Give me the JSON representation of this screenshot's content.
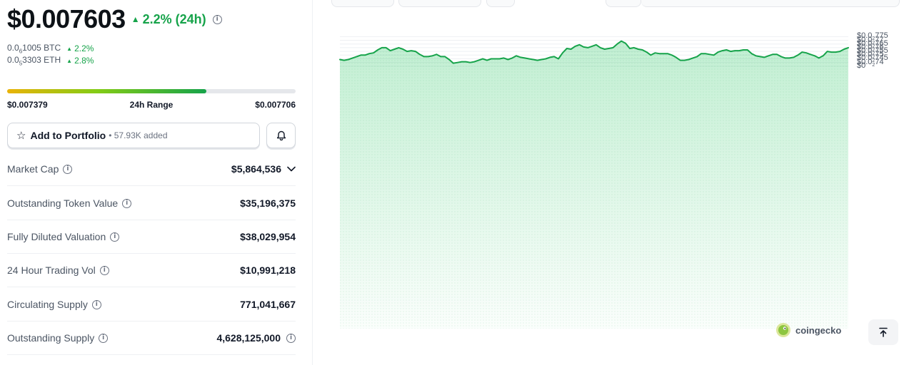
{
  "price": {
    "value": "$0.007603",
    "change": "2.2% (24h)"
  },
  "conversions": [
    {
      "prefix": "0.0",
      "sub": "6",
      "rest": "1005 BTC",
      "pct": "2.2%"
    },
    {
      "prefix": "0.0",
      "sub": "5",
      "rest": "3303 ETH",
      "pct": "2.8%"
    }
  ],
  "range": {
    "low": "$0.007379",
    "label": "24h Range",
    "high": "$0.007706",
    "fill_percent": 69
  },
  "portfolio": {
    "label": "Add to Portfolio",
    "added": "• 57.93K added"
  },
  "stats": [
    {
      "label": "Market Cap",
      "value": "$5,864,536"
    },
    {
      "label": "Outstanding Token Value",
      "value": "$35,196,375"
    },
    {
      "label": "Fully Diluted Valuation",
      "value": "$38,029,954"
    },
    {
      "label": "24 Hour Trading Vol",
      "value": "$10,991,218"
    },
    {
      "label": "Circulating Supply",
      "value": "771,041,667"
    },
    {
      "label": "Outstanding Supply",
      "value": "4,628,125,000"
    }
  ],
  "colors": {
    "up": "#16a34a",
    "line": "#16a34a",
    "area": "#dcfce7"
  },
  "icons": {
    "favorite": "star-icon",
    "alert": "bell-icon",
    "expand": "chevron-down-icon",
    "info": "info-icon",
    "scroll": "arrow-up-to-line-icon",
    "brand": "gecko-icon"
  },
  "watermark": "coingecko",
  "chart_data": {
    "type": "area",
    "ylim": [
      0.00738,
      0.007785
    ],
    "y_ticks": [
      {
        "value": 0.007775,
        "prefix": "$0.0",
        "sub": "2",
        "rest": "775"
      },
      {
        "value": 0.00777,
        "prefix": "$0.0",
        "sub": "2",
        "rest": "77"
      },
      {
        "value": 0.007765,
        "prefix": "$0.0",
        "sub": "2",
        "rest": "765"
      },
      {
        "value": 0.00776,
        "prefix": "$0.0",
        "sub": "2",
        "rest": "76"
      },
      {
        "value": 0.007755,
        "prefix": "$0.0",
        "sub": "2",
        "rest": "755"
      },
      {
        "value": 0.00775,
        "prefix": "$0.0",
        "sub": "2",
        "rest": "75"
      },
      {
        "value": 0.007745,
        "prefix": "$0.0",
        "sub": "2",
        "rest": "745"
      },
      {
        "value": 0.00774,
        "prefix": "$0.0",
        "sub": "2",
        "rest": "74"
      },
      {
        "value": 0.007735,
        "prefix": "$0",
        "sub": "",
        "rest": ""
      }
    ],
    "values": [
      0.007744,
      0.007743,
      0.007744,
      0.007746,
      0.007748,
      0.00775,
      0.00775,
      0.007752,
      0.007753,
      0.007757,
      0.00776,
      0.00776,
      0.007756,
      0.007758,
      0.00776,
      0.007758,
      0.007755,
      0.007756,
      0.007755,
      0.007751,
      0.007748,
      0.007748,
      0.007749,
      0.007751,
      0.007748,
      0.007748,
      0.007744,
      0.007739,
      0.00774,
      0.007741,
      0.007741,
      0.00774,
      0.007741,
      0.007743,
      0.007745,
      0.007743,
      0.007745,
      0.007745,
      0.007745,
      0.007746,
      0.007744,
      0.007746,
      0.007749,
      0.007747,
      0.007746,
      0.007745,
      0.007744,
      0.007743,
      0.007744,
      0.007745,
      0.007747,
      0.007748,
      0.007745,
      0.007753,
      0.007759,
      0.007758,
      0.007762,
      0.007764,
      0.007761,
      0.00776,
      0.007762,
      0.007764,
      0.00776,
      0.007758,
      0.007759,
      0.00776,
      0.007765,
      0.007769,
      0.007766,
      0.007759,
      0.00776,
      0.007758,
      0.007757,
      0.007754,
      0.00775,
      0.007753,
      0.007752,
      0.007752,
      0.007752,
      0.00775,
      0.007747,
      0.007743,
      0.007743,
      0.007744,
      0.007746,
      0.007748,
      0.007752,
      0.007752,
      0.007751,
      0.00775,
      0.007754,
      0.007756,
      0.007757,
      0.007755,
      0.007756,
      0.007756,
      0.007757,
      0.007757,
      0.007752,
      0.007749,
      0.007748,
      0.007747,
      0.007749,
      0.007751,
      0.007751,
      0.007748,
      0.007746,
      0.007746,
      0.007747,
      0.00775,
      0.007754,
      0.007753,
      0.007751,
      0.007749,
      0.007746,
      0.007749,
      0.007755,
      0.007754,
      0.007754,
      0.007755,
      0.007758,
      0.00776
    ]
  }
}
